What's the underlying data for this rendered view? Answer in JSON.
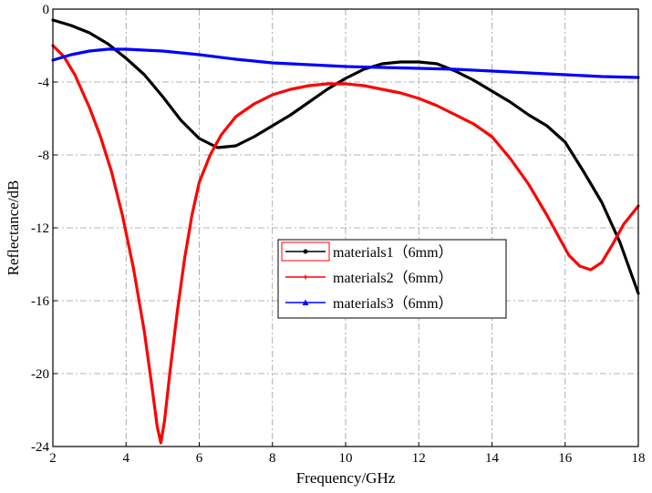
{
  "chart_data": {
    "type": "line",
    "xlabel": "Frequency/GHz",
    "ylabel": "Reflectance/dB",
    "xlim": [
      2,
      18
    ],
    "ylim": [
      -24,
      0
    ],
    "xticks": [
      2,
      4,
      6,
      8,
      10,
      12,
      14,
      16,
      18
    ],
    "yticks": [
      0,
      -4,
      -8,
      -12,
      -16,
      -20,
      -24
    ],
    "grid": true,
    "legend_position": "center-right",
    "series": [
      {
        "name": "materials1（6mm）",
        "color": "#000000",
        "marker": "circle",
        "x": [
          2.0,
          2.5,
          3.0,
          3.5,
          4.0,
          4.5,
          5.0,
          5.5,
          6.0,
          6.5,
          7.0,
          7.5,
          8.0,
          8.5,
          9.0,
          9.5,
          10.0,
          10.5,
          11.0,
          11.5,
          12.0,
          12.5,
          13.0,
          13.5,
          14.0,
          14.5,
          15.0,
          15.5,
          16.0,
          16.5,
          17.0,
          17.5,
          18.0
        ],
        "y": [
          -0.6,
          -0.9,
          -1.3,
          -1.9,
          -2.7,
          -3.6,
          -4.8,
          -6.1,
          -7.1,
          -7.6,
          -7.5,
          -7.0,
          -6.4,
          -5.8,
          -5.1,
          -4.4,
          -3.8,
          -3.3,
          -3.0,
          -2.9,
          -2.9,
          -3.0,
          -3.4,
          -3.9,
          -4.5,
          -5.1,
          -5.8,
          -6.4,
          -7.3,
          -8.9,
          -10.6,
          -12.8,
          -15.6
        ]
      },
      {
        "name": "materials2（6mm）",
        "color": "#ff0000",
        "marker": "plus",
        "x": [
          2.0,
          2.3,
          2.6,
          3.0,
          3.3,
          3.6,
          3.9,
          4.2,
          4.5,
          4.7,
          4.85,
          4.95,
          5.05,
          5.2,
          5.4,
          5.6,
          5.8,
          6.0,
          6.3,
          6.6,
          7.0,
          7.5,
          8.0,
          8.5,
          9.0,
          9.5,
          10.0,
          10.5,
          11.0,
          11.5,
          12.0,
          12.5,
          13.0,
          13.5,
          14.0,
          14.5,
          15.0,
          15.5,
          15.8,
          16.1,
          16.4,
          16.7,
          17.0,
          17.3,
          17.6,
          18.0
        ],
        "y": [
          -2.0,
          -2.6,
          -3.6,
          -5.4,
          -7.0,
          -8.9,
          -11.3,
          -14.2,
          -17.7,
          -20.6,
          -22.9,
          -23.8,
          -22.6,
          -19.9,
          -16.6,
          -13.7,
          -11.3,
          -9.5,
          -8.0,
          -6.9,
          -5.9,
          -5.2,
          -4.7,
          -4.4,
          -4.2,
          -4.1,
          -4.1,
          -4.2,
          -4.4,
          -4.6,
          -4.9,
          -5.3,
          -5.8,
          -6.3,
          -7.0,
          -8.2,
          -9.6,
          -11.3,
          -12.4,
          -13.5,
          -14.1,
          -14.3,
          -13.9,
          -12.9,
          -11.8,
          -10.8
        ]
      },
      {
        "name": "materials3（6mm）",
        "color": "#0000ff",
        "marker": "triangle",
        "x": [
          2.0,
          2.5,
          3.0,
          3.5,
          4.0,
          4.5,
          5.0,
          6.0,
          7.0,
          8.0,
          9.0,
          10.0,
          11.0,
          12.0,
          13.0,
          14.0,
          15.0,
          16.0,
          17.0,
          18.0
        ],
        "y": [
          -2.8,
          -2.5,
          -2.3,
          -2.2,
          -2.2,
          -2.25,
          -2.3,
          -2.5,
          -2.75,
          -2.95,
          -3.05,
          -3.15,
          -3.2,
          -3.25,
          -3.3,
          -3.4,
          -3.5,
          -3.6,
          -3.7,
          -3.75
        ]
      }
    ]
  }
}
